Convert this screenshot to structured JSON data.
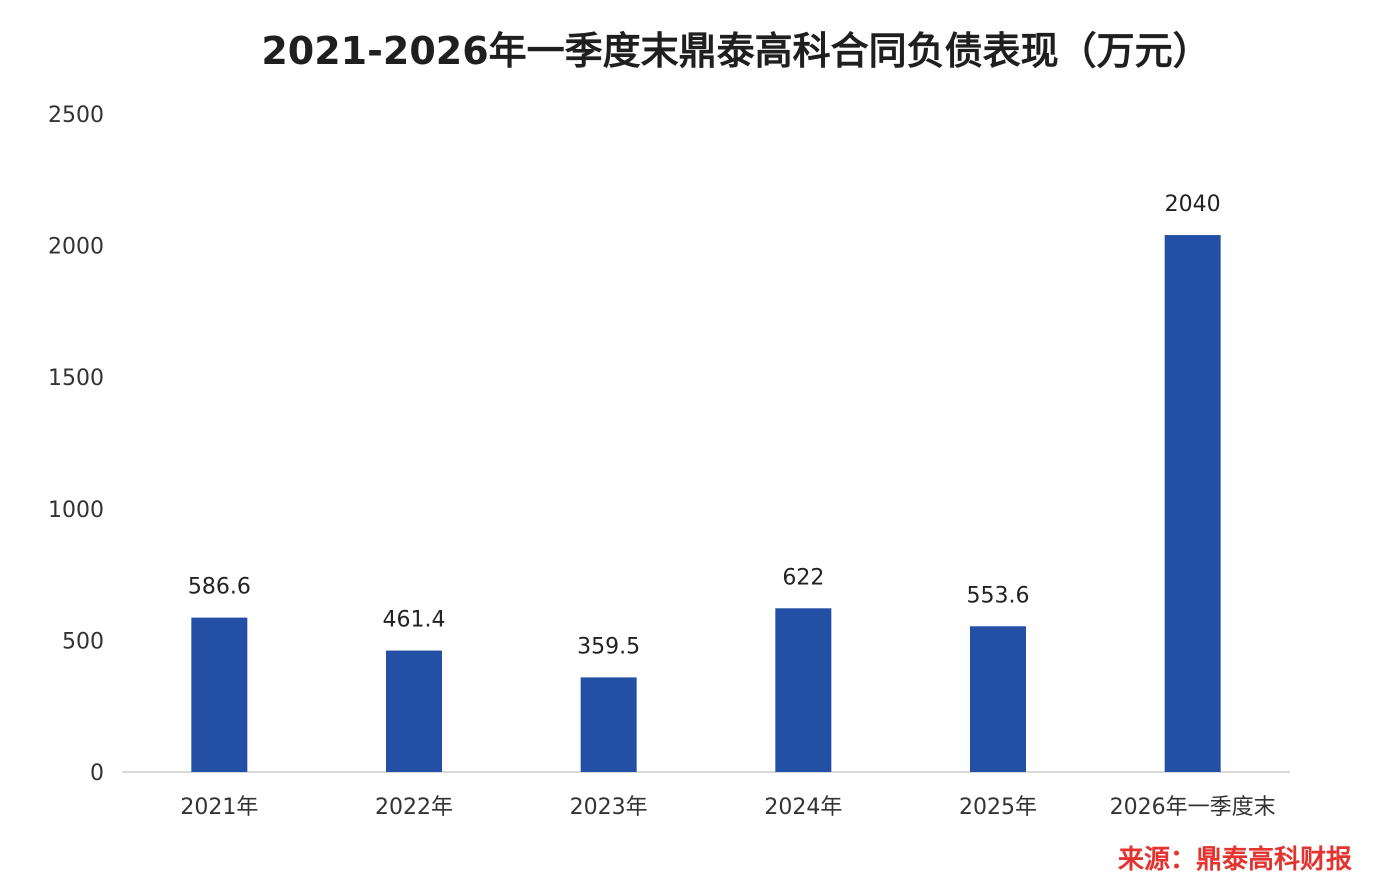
{
  "chart_data": {
    "type": "bar",
    "title": "2021-2026年一季度末鼎泰高科合同负债表现（万元）",
    "categories": [
      "2021年",
      "2022年",
      "2023年",
      "2024年",
      "2025年",
      "2026年一季度末"
    ],
    "values": [
      586.6,
      461.4,
      359.5,
      622,
      553.6,
      2040
    ],
    "value_labels": [
      "586.6",
      "461.4",
      "359.5",
      "622",
      "553.6",
      "2040"
    ],
    "y_ticks": [
      0,
      500,
      1000,
      1500,
      2000,
      2500
    ],
    "ylim": [
      0,
      2500
    ],
    "xlabel": "",
    "ylabel": "",
    "grid": false,
    "legend": "none",
    "bar_color": "#2350a4"
  },
  "source_note": "来源：鼎泰高科财报",
  "colors": {
    "axis": "#d9d9d9",
    "title": "#1f1f1f",
    "source": "#e3342f"
  }
}
